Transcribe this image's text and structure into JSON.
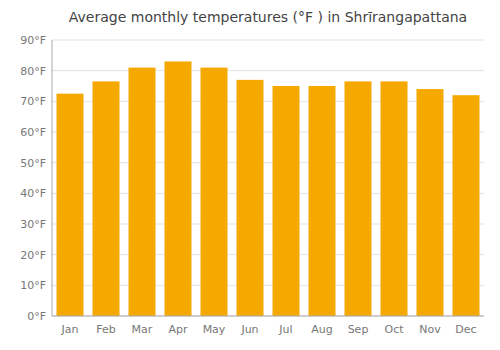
{
  "chart_data": {
    "type": "bar",
    "title": "Average monthly temperatures (°F ) in Shrīrangapattana",
    "categories": [
      "Jan",
      "Feb",
      "Mar",
      "Apr",
      "May",
      "Jun",
      "Jul",
      "Aug",
      "Sep",
      "Oct",
      "Nov",
      "Dec"
    ],
    "values": [
      72.5,
      76.5,
      81.0,
      83.0,
      81.0,
      77.0,
      75.0,
      75.0,
      76.5,
      76.5,
      74.0,
      72.0
    ],
    "color": "#F5A800",
    "ylim": [
      0,
      90
    ],
    "yticks": [
      {
        "value": 0,
        "label": "0°F"
      },
      {
        "value": 10,
        "label": "10°F"
      },
      {
        "value": 20,
        "label": "20°F"
      },
      {
        "value": 30,
        "label": "30°F"
      },
      {
        "value": 40,
        "label": "40°F"
      },
      {
        "value": 50,
        "label": "50°F"
      },
      {
        "value": 60,
        "label": "60°F"
      },
      {
        "value": 70,
        "label": "70°F"
      },
      {
        "value": 80,
        "label": "80°F"
      },
      {
        "value": 90,
        "label": "90°F"
      }
    ],
    "grid": true
  }
}
